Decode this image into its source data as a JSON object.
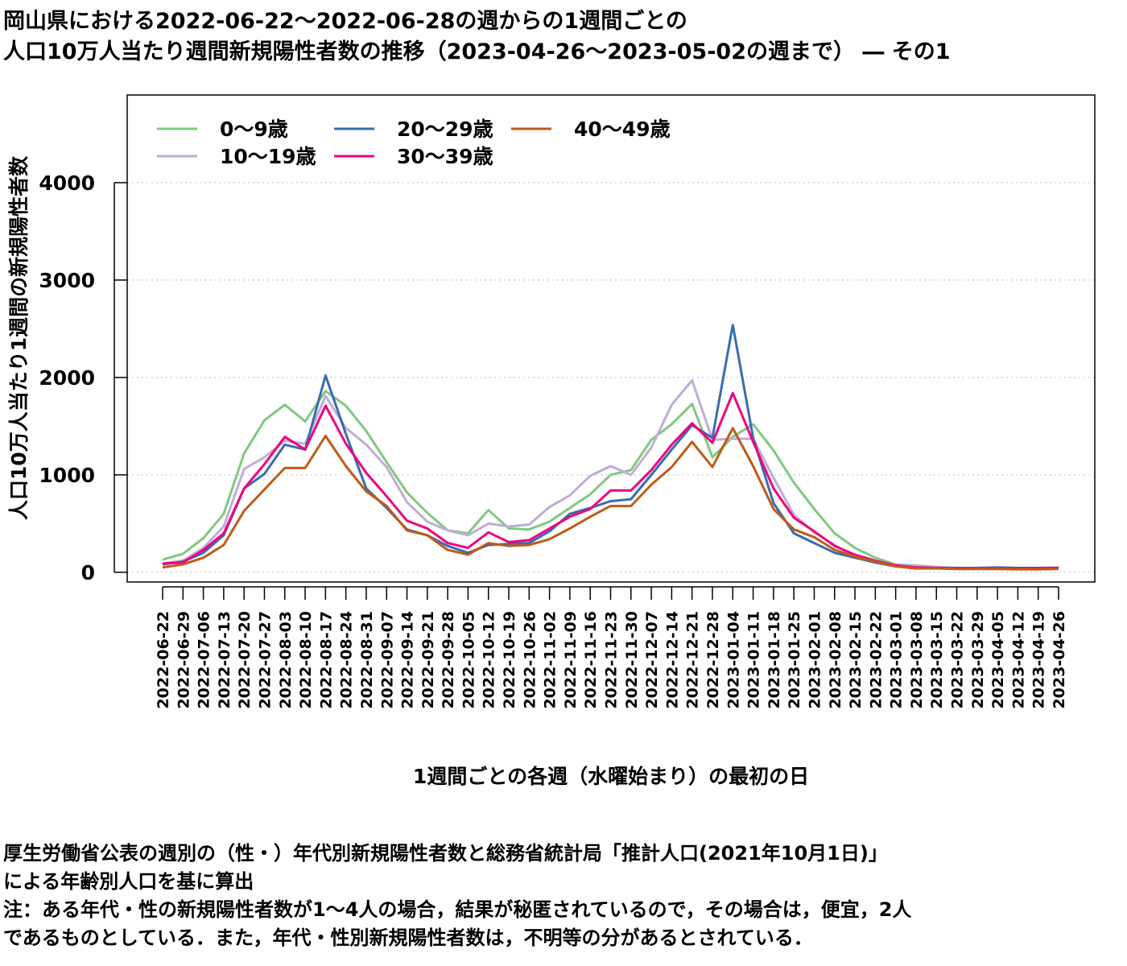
{
  "title_line1": "岡山県における2022-06-22〜2022-06-28の週からの1週間ごとの",
  "title_line2": "人口10万人当たり週間新規陽性者数の推移（2023-04-26〜2023-05-02の週まで） ― その1",
  "notes": [
    "厚生労働省公表の週別の（性・）年代別新規陽性者数と総務省統計局「推計人口(2021年10月1日)」",
    "による年齢別人口を基に算出",
    "注：ある年代・性の新規陽性者数が1〜4人の場合，結果が秘匿されているので，その場合は，便宜，2人",
    "であるものとしている．また，年代・性別新規陽性者数は，不明等の分があるとされている．"
  ],
  "chart_data": {
    "type": "line",
    "xlabel": "1週間ごとの各週（水曜始まり）の最初の日",
    "ylabel": "人口10万人当たり1週間の新規陽性者数",
    "ylim": [
      -100,
      4900
    ],
    "yticks": [
      0,
      1000,
      2000,
      3000,
      4000
    ],
    "grid": "horizontal dotted",
    "legend_position": "top-left",
    "x": [
      "2022-06-22",
      "2022-06-29",
      "2022-07-06",
      "2022-07-13",
      "2022-07-20",
      "2022-07-27",
      "2022-08-03",
      "2022-08-10",
      "2022-08-17",
      "2022-08-24",
      "2022-08-31",
      "2022-09-07",
      "2022-09-14",
      "2022-09-21",
      "2022-09-28",
      "2022-10-05",
      "2022-10-12",
      "2022-10-19",
      "2022-10-26",
      "2022-11-02",
      "2022-11-09",
      "2022-11-16",
      "2022-11-23",
      "2022-11-30",
      "2022-12-07",
      "2022-12-14",
      "2022-12-21",
      "2022-12-28",
      "2023-01-04",
      "2023-01-11",
      "2023-01-18",
      "2023-01-25",
      "2023-02-01",
      "2023-02-08",
      "2023-02-15",
      "2023-02-22",
      "2023-03-01",
      "2023-03-08",
      "2023-03-15",
      "2023-03-22",
      "2023-03-29",
      "2023-04-05",
      "2023-04-12",
      "2023-04-19",
      "2023-04-26"
    ],
    "series": [
      {
        "name": "0〜9歳",
        "color": "#7fc97f",
        "values": [
          130,
          190,
          350,
          600,
          1220,
          1560,
          1720,
          1550,
          1860,
          1710,
          1450,
          1130,
          820,
          610,
          430,
          400,
          640,
          450,
          440,
          520,
          660,
          800,
          1000,
          1050,
          1360,
          1520,
          1730,
          1180,
          1390,
          1520,
          1250,
          920,
          650,
          400,
          250,
          150,
          80,
          60,
          45,
          35,
          35,
          35,
          35,
          40,
          45
        ]
      },
      {
        "name": "10〜19歳",
        "color": "#beaed4",
        "values": [
          90,
          120,
          250,
          470,
          1060,
          1180,
          1350,
          1320,
          1810,
          1480,
          1310,
          1080,
          720,
          520,
          430,
          380,
          500,
          470,
          490,
          670,
          790,
          990,
          1090,
          1000,
          1280,
          1720,
          1970,
          1360,
          1370,
          1370,
          970,
          590,
          410,
          280,
          160,
          110,
          80,
          70,
          55,
          45,
          40,
          40,
          40,
          45,
          50
        ]
      },
      {
        "name": "20〜29歳",
        "color": "#386cb0",
        "values": [
          80,
          110,
          200,
          380,
          860,
          1010,
          1310,
          1260,
          2020,
          1420,
          860,
          660,
          440,
          380,
          270,
          200,
          280,
          290,
          300,
          420,
          600,
          660,
          730,
          750,
          1000,
          1260,
          1510,
          1380,
          2540,
          1380,
          710,
          400,
          300,
          200,
          150,
          100,
          60,
          50,
          45,
          45,
          45,
          50,
          45,
          45,
          45
        ]
      },
      {
        "name": "30〜39歳",
        "color": "#f0027f",
        "values": [
          90,
          100,
          230,
          400,
          860,
          1110,
          1390,
          1260,
          1710,
          1320,
          1020,
          780,
          530,
          450,
          300,
          250,
          410,
          310,
          330,
          450,
          570,
          650,
          840,
          840,
          1050,
          1310,
          1530,
          1330,
          1840,
          1340,
          860,
          560,
          420,
          270,
          180,
          120,
          70,
          50,
          45,
          40,
          40,
          40,
          40,
          40,
          45
        ]
      },
      {
        "name": "40〜49歳",
        "color": "#bf5b17",
        "values": [
          50,
          80,
          150,
          280,
          630,
          850,
          1070,
          1070,
          1400,
          1090,
          830,
          680,
          430,
          380,
          230,
          180,
          300,
          270,
          280,
          340,
          450,
          570,
          680,
          680,
          900,
          1080,
          1340,
          1080,
          1480,
          1090,
          650,
          440,
          360,
          230,
          160,
          110,
          60,
          40,
          40,
          35,
          35,
          35,
          30,
          30,
          35
        ]
      }
    ]
  }
}
